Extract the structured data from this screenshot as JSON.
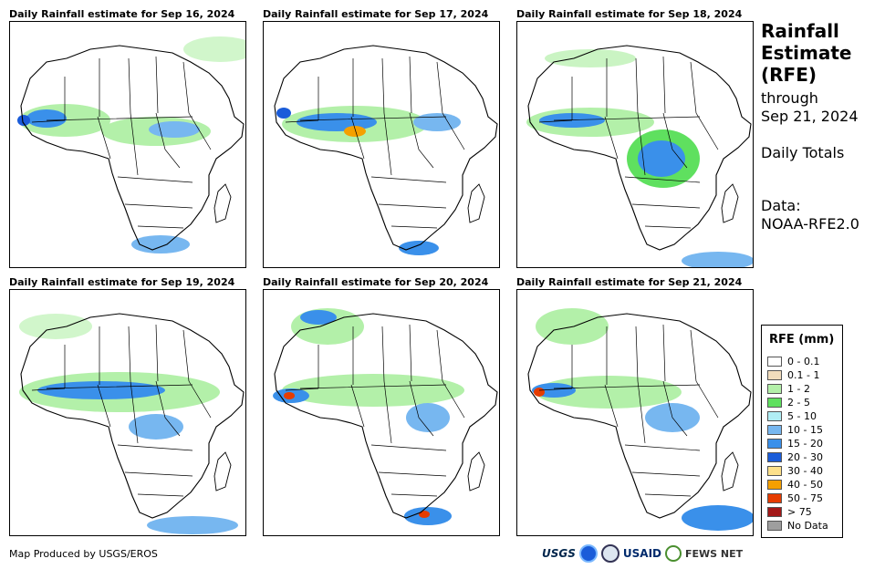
{
  "panels": [
    {
      "title": "Daily Rainfall estimate for Sep 16, 2024"
    },
    {
      "title": "Daily Rainfall estimate for Sep 17, 2024"
    },
    {
      "title": "Daily Rainfall estimate for Sep 18, 2024"
    },
    {
      "title": "Daily Rainfall estimate for Sep 19, 2024"
    },
    {
      "title": "Daily Rainfall estimate for Sep 20, 2024"
    },
    {
      "title": "Daily Rainfall estimate for Sep 21, 2024"
    }
  ],
  "side": {
    "heading": [
      "Rainfall",
      "Estimate",
      "(RFE)"
    ],
    "through_label": "through",
    "through_date": "Sep 21, 2024",
    "totals": "Daily Totals",
    "data_label": "Data:",
    "data_source": "NOAA-RFE2.0"
  },
  "legend": {
    "title": "RFE (mm)",
    "items": [
      {
        "label": "0 - 0.1",
        "color": "#ffffff"
      },
      {
        "label": "0.1 - 1",
        "color": "#f1dcbc"
      },
      {
        "label": "1 - 2",
        "color": "#b3f0a9"
      },
      {
        "label": "2 - 5",
        "color": "#5fe05f"
      },
      {
        "label": "5 - 10",
        "color": "#b0eef5"
      },
      {
        "label": "10 - 15",
        "color": "#77b7f0"
      },
      {
        "label": "15 - 20",
        "color": "#3a90ea"
      },
      {
        "label": "20 - 30",
        "color": "#1a5cd9"
      },
      {
        "label": "30 - 40",
        "color": "#fde08a"
      },
      {
        "label": "40 - 50",
        "color": "#f5a000"
      },
      {
        "label": "50 - 75",
        "color": "#e63c00"
      },
      {
        "label": "> 75",
        "color": "#a31818"
      },
      {
        "label": "No Data",
        "color": "#9e9e9e"
      }
    ]
  },
  "footer": {
    "credit": "Map Produced by USGS/EROS"
  },
  "logos": {
    "usgs": "USGS",
    "usaid": "USAID",
    "fews": "FEWS NET"
  }
}
